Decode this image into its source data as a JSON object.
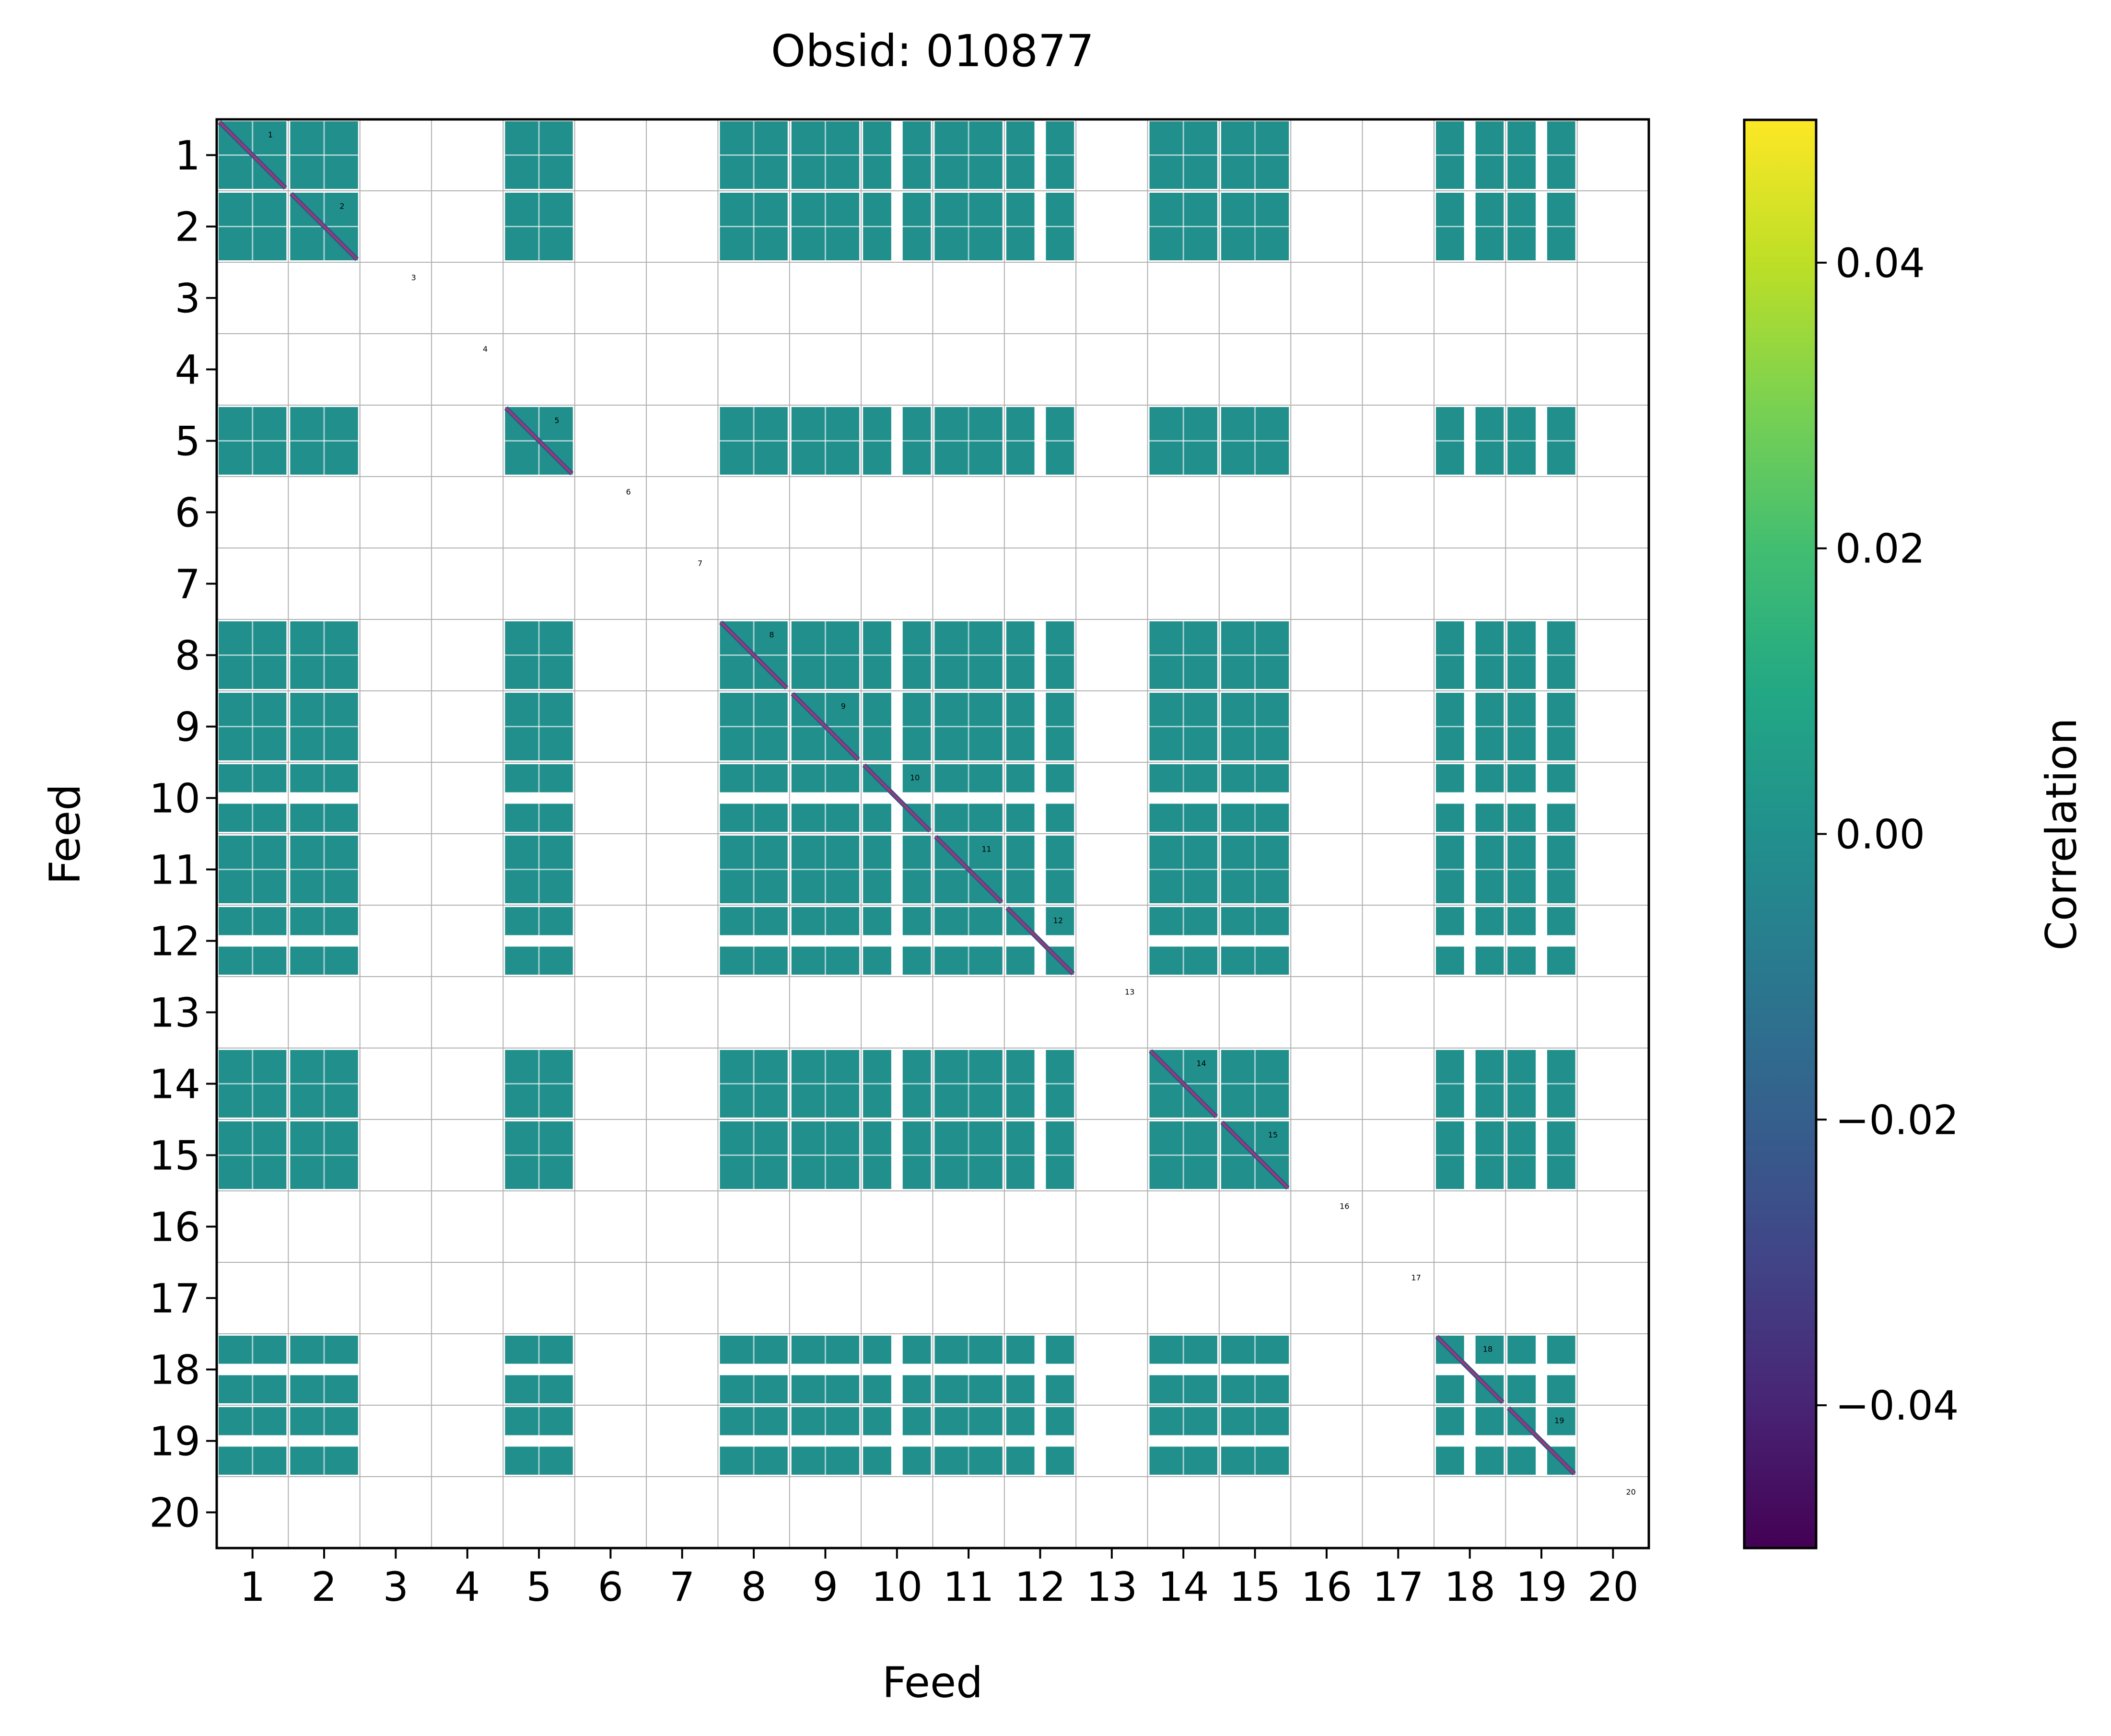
{
  "chart_data": {
    "type": "heatmap",
    "title": "Obsid: 010877",
    "xlabel": "Feed",
    "ylabel": "Feed",
    "feeds": [
      1,
      2,
      3,
      4,
      5,
      6,
      7,
      8,
      9,
      10,
      11,
      12,
      13,
      14,
      15,
      16,
      17,
      18,
      19,
      20
    ],
    "x_tick_labels": [
      "1",
      "2",
      "3",
      "4",
      "5",
      "6",
      "7",
      "8",
      "9",
      "10",
      "11",
      "12",
      "13",
      "14",
      "15",
      "16",
      "17",
      "18",
      "19",
      "20"
    ],
    "y_tick_labels": [
      "1",
      "2",
      "3",
      "4",
      "5",
      "6",
      "7",
      "8",
      "9",
      "10",
      "11",
      "12",
      "13",
      "14",
      "15",
      "16",
      "17",
      "18",
      "19",
      "20"
    ],
    "inactive_feeds": [
      3,
      4,
      6,
      7,
      13,
      16,
      17,
      20
    ],
    "partial_feeds": [
      10,
      12,
      18,
      19
    ],
    "diagonal_labels": [
      "1",
      "2",
      "3",
      "4",
      "5",
      "6",
      "7",
      "8",
      "9",
      "10",
      "11",
      "12",
      "13",
      "14",
      "15",
      "16",
      "17",
      "18",
      "19",
      "20"
    ],
    "offdiagonal_value": 0.0,
    "diagonal_value": -0.05,
    "colorbar": {
      "label": "Correlation",
      "vmin": -0.05,
      "vmax": 0.05,
      "ticks": [
        0.04,
        0.02,
        0.0,
        -0.02,
        -0.04
      ],
      "tick_labels": [
        "0.04",
        "0.02",
        "0.00",
        "−0.02",
        "−0.04"
      ],
      "colormap": "viridis"
    },
    "colors": {
      "cell": "#21908d",
      "diagonal": "#3b528b",
      "grid": "#b0b0b0"
    }
  }
}
